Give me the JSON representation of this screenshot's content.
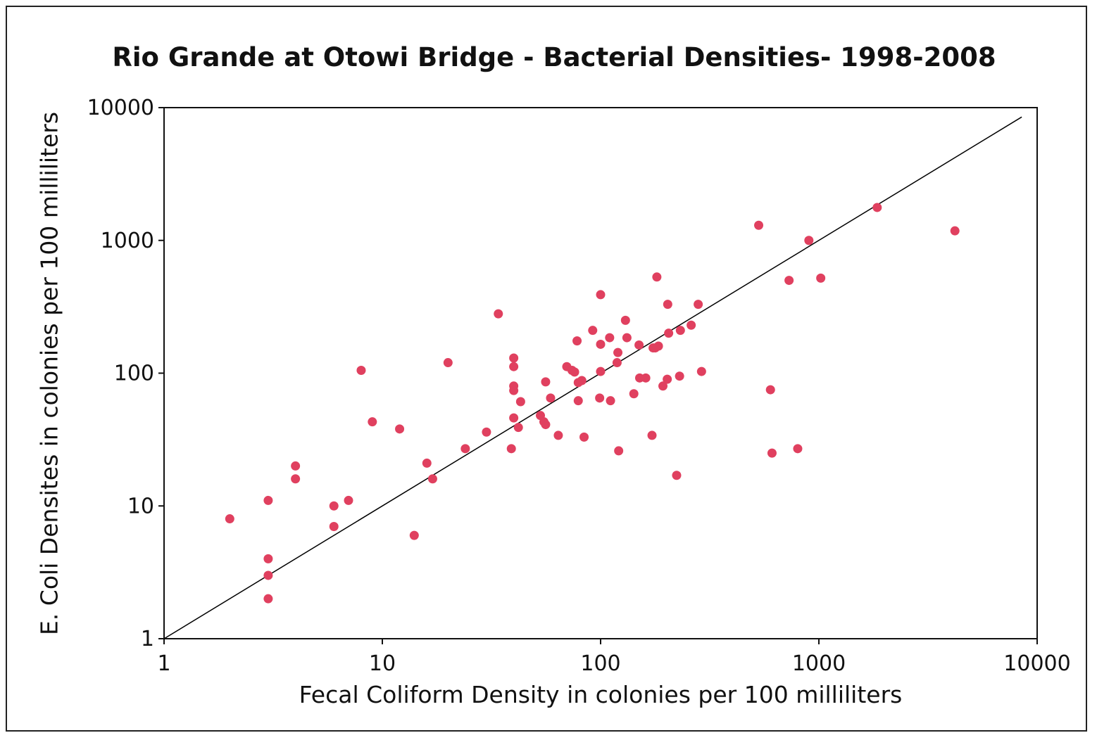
{
  "chart_data": {
    "type": "scatter",
    "title": "Rio Grande at Otowi Bridge - Bacterial Densities- 1998-2008",
    "xlabel": "Fecal Coliform Density in colonies per 100 milliliters",
    "ylabel": "E. Coli Densites in colonies per 100 milliliters",
    "x_scale": "log",
    "y_scale": "log",
    "xlim": [
      1,
      10000
    ],
    "ylim": [
      1,
      10000
    ],
    "x_ticks": [
      "1",
      "10",
      "100",
      "1000",
      "10000"
    ],
    "y_ticks": [
      "1",
      "10",
      "100",
      "1000",
      "10000"
    ],
    "grid": false,
    "legend": "none",
    "marker_color": "#e0405f",
    "reference_line": {
      "type": "y=x",
      "color": "#000000"
    },
    "series": [
      {
        "points": [
          [
            2,
            8
          ],
          [
            3,
            11
          ],
          [
            3,
            4
          ],
          [
            3,
            3
          ],
          [
            3,
            2
          ],
          [
            4,
            20
          ],
          [
            4,
            16
          ],
          [
            6,
            10
          ],
          [
            6,
            7
          ],
          [
            7,
            11
          ],
          [
            8,
            105
          ],
          [
            9,
            43
          ],
          [
            12,
            38
          ],
          [
            14,
            6
          ],
          [
            16,
            21
          ],
          [
            17,
            16
          ],
          [
            20,
            120
          ],
          [
            24,
            27
          ],
          [
            30,
            36
          ],
          [
            34,
            280
          ],
          [
            39,
            27
          ],
          [
            40,
            130
          ],
          [
            40,
            112
          ],
          [
            40,
            80
          ],
          [
            40,
            74
          ],
          [
            40,
            46
          ],
          [
            42,
            39
          ],
          [
            43,
            61
          ],
          [
            53,
            48
          ],
          [
            55,
            43
          ],
          [
            56,
            41
          ],
          [
            56,
            86
          ],
          [
            59,
            65
          ],
          [
            64,
            34
          ],
          [
            70,
            112
          ],
          [
            74,
            105
          ],
          [
            76,
            102
          ],
          [
            78,
            175
          ],
          [
            79,
            62
          ],
          [
            79,
            85
          ],
          [
            82,
            88
          ],
          [
            84,
            33
          ],
          [
            92,
            210
          ],
          [
            99,
            65
          ],
          [
            100,
            165
          ],
          [
            100,
            103
          ],
          [
            100,
            390
          ],
          [
            110,
            185
          ],
          [
            111,
            62
          ],
          [
            119,
            120
          ],
          [
            120,
            143
          ],
          [
            121,
            26
          ],
          [
            130,
            250
          ],
          [
            132,
            185
          ],
          [
            142,
            70
          ],
          [
            150,
            163
          ],
          [
            151,
            92
          ],
          [
            161,
            92
          ],
          [
            172,
            34
          ],
          [
            174,
            155
          ],
          [
            178,
            155
          ],
          [
            181,
            530
          ],
          [
            184,
            160
          ],
          [
            193,
            80
          ],
          [
            202,
            90
          ],
          [
            203,
            330
          ],
          [
            205,
            200
          ],
          [
            223,
            17
          ],
          [
            230,
            95
          ],
          [
            232,
            210
          ],
          [
            260,
            230
          ],
          [
            280,
            330
          ],
          [
            290,
            103
          ],
          [
            530,
            1300
          ],
          [
            600,
            75
          ],
          [
            610,
            25
          ],
          [
            730,
            500
          ],
          [
            800,
            27
          ],
          [
            900,
            1000
          ],
          [
            1020,
            520
          ],
          [
            1850,
            1770
          ],
          [
            4200,
            1180
          ]
        ]
      }
    ]
  }
}
